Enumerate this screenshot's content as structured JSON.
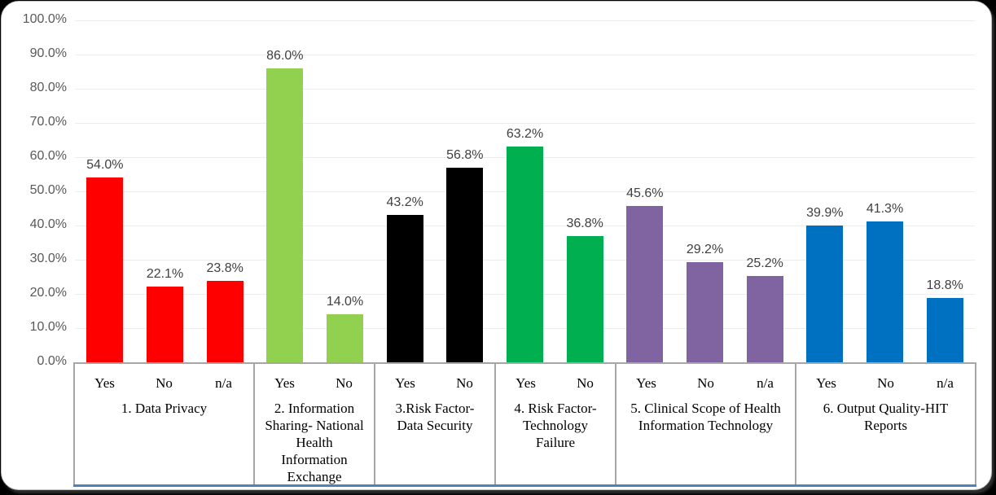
{
  "chart_data": {
    "type": "bar",
    "title": "",
    "xlabel": "",
    "ylabel": "",
    "ylim": [
      0,
      100
    ],
    "grid": true,
    "legend": false,
    "yticks": [
      "100.0%",
      "90.0%",
      "80.0%",
      "70.0%",
      "60.0%",
      "50.0%",
      "40.0%",
      "30.0%",
      "20.0%",
      "10.0%",
      "0.0%"
    ],
    "axis_colors": {
      "tick_label": "#595959",
      "gridline": "#ededed",
      "table_border": "#a6a6a6",
      "baseline": "#4f81bd",
      "data_label": "#404040"
    },
    "groups": [
      {
        "label": "1. Data Privacy",
        "label_lines": [
          "1. Data Privacy"
        ],
        "color": "#ff0000",
        "bars": [
          {
            "answer": "Yes",
            "value": 54.0,
            "label": "54.0%"
          },
          {
            "answer": "No",
            "value": 22.1,
            "label": "22.1%"
          },
          {
            "answer": "n/a",
            "value": 23.8,
            "label": "23.8%"
          }
        ]
      },
      {
        "label": "2. Information Sharing- National Health Information Exchange",
        "label_lines": [
          "2. Information",
          "Sharing- National",
          "Health",
          "Information",
          "Exchange"
        ],
        "color": "#92d050",
        "bars": [
          {
            "answer": "Yes",
            "value": 86.0,
            "label": "86.0%"
          },
          {
            "answer": "No",
            "value": 14.0,
            "label": "14.0%"
          }
        ]
      },
      {
        "label": "3.Risk Factor-Data Security",
        "label_lines": [
          "3.Risk Factor-",
          "Data Security"
        ],
        "color": "#000000",
        "bars": [
          {
            "answer": "Yes",
            "value": 43.2,
            "label": "43.2%"
          },
          {
            "answer": "No",
            "value": 56.8,
            "label": "56.8%"
          }
        ]
      },
      {
        "label": "4. Risk Factor-Technology Failure",
        "label_lines": [
          "4. Risk Factor-",
          "Technology",
          "Failure"
        ],
        "color": "#00b050",
        "bars": [
          {
            "answer": "Yes",
            "value": 63.2,
            "label": "63.2%"
          },
          {
            "answer": "No",
            "value": 36.8,
            "label": "36.8%"
          }
        ]
      },
      {
        "label": "5. Clinical Scope of Health Information Technology",
        "label_lines": [
          "5. Clinical  Scope of Health",
          "Information  Technology"
        ],
        "color": "#8064a2",
        "bars": [
          {
            "answer": "Yes",
            "value": 45.6,
            "label": "45.6%"
          },
          {
            "answer": "No",
            "value": 29.2,
            "label": "29.2%"
          },
          {
            "answer": "n/a",
            "value": 25.2,
            "label": "25.2%"
          }
        ]
      },
      {
        "label": "6. Output Quality-HIT Reports",
        "label_lines": [
          "6. Output  Quality-HIT",
          "Reports"
        ],
        "color": "#0070c0",
        "bars": [
          {
            "answer": "Yes",
            "value": 39.9,
            "label": "39.9%"
          },
          {
            "answer": "No",
            "value": 41.3,
            "label": "41.3%"
          },
          {
            "answer": "n/a",
            "value": 18.8,
            "label": "18.8%"
          }
        ]
      }
    ]
  }
}
